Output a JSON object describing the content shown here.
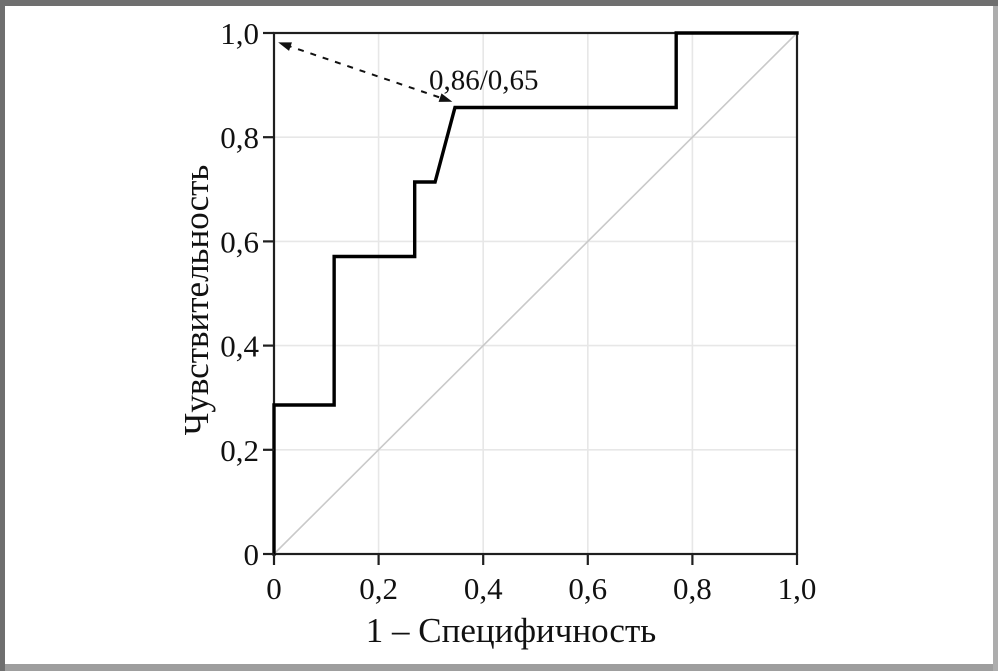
{
  "frame": {
    "top_color": "#6f6f6f",
    "left_color": "#6f6f6f",
    "bottom_color": "#9e9e9e",
    "right_color": "#adadad"
  },
  "chart_data": {
    "type": "line",
    "subtype": "roc-curve",
    "title": "",
    "xlabel": "1 – Специфичность",
    "ylabel": "Чувствительность",
    "xlim": [
      0,
      1
    ],
    "ylim": [
      0,
      1
    ],
    "grid": true,
    "legend": "none",
    "x_ticks": {
      "values": [
        0,
        0.2,
        0.4,
        0.6,
        0.8,
        1.0
      ],
      "labels": [
        "0",
        "0,2",
        "0,4",
        "0,6",
        "0,8",
        "1,0"
      ]
    },
    "y_ticks": {
      "values": [
        0,
        0.2,
        0.4,
        0.6,
        0.8,
        1.0
      ],
      "labels": [
        "0",
        "0,2",
        "0,4",
        "0,6",
        "0,8",
        "1,0"
      ]
    },
    "series": [
      {
        "name": "chance-diagonal",
        "color": "#c9c9c9",
        "width": 1.6,
        "x": [
          0,
          1
        ],
        "y": [
          0,
          1
        ]
      },
      {
        "name": "roc-curve",
        "color": "#000000",
        "width": 3.4,
        "x": [
          0,
          0,
          0.115,
          0.115,
          0.269,
          0.269,
          0.308,
          0.346,
          0.769,
          0.769,
          1.0
        ],
        "y": [
          0,
          0.286,
          0.286,
          0.571,
          0.571,
          0.714,
          0.714,
          0.857,
          0.857,
          1.0,
          1.0
        ]
      }
    ],
    "annotation": {
      "label": "0,86/0,65",
      "label_pos": {
        "x": 0.401,
        "y": 0.892
      },
      "arrow": {
        "from": {
          "x": 0.008,
          "y": 0.982
        },
        "to": {
          "x": 0.341,
          "y": 0.868
        },
        "style": "dashed",
        "double_headed": true,
        "color": "#111111"
      }
    },
    "colors": {
      "grid": "#e7e7e7",
      "axis": "#1f1f1f",
      "text": "#111111"
    }
  }
}
